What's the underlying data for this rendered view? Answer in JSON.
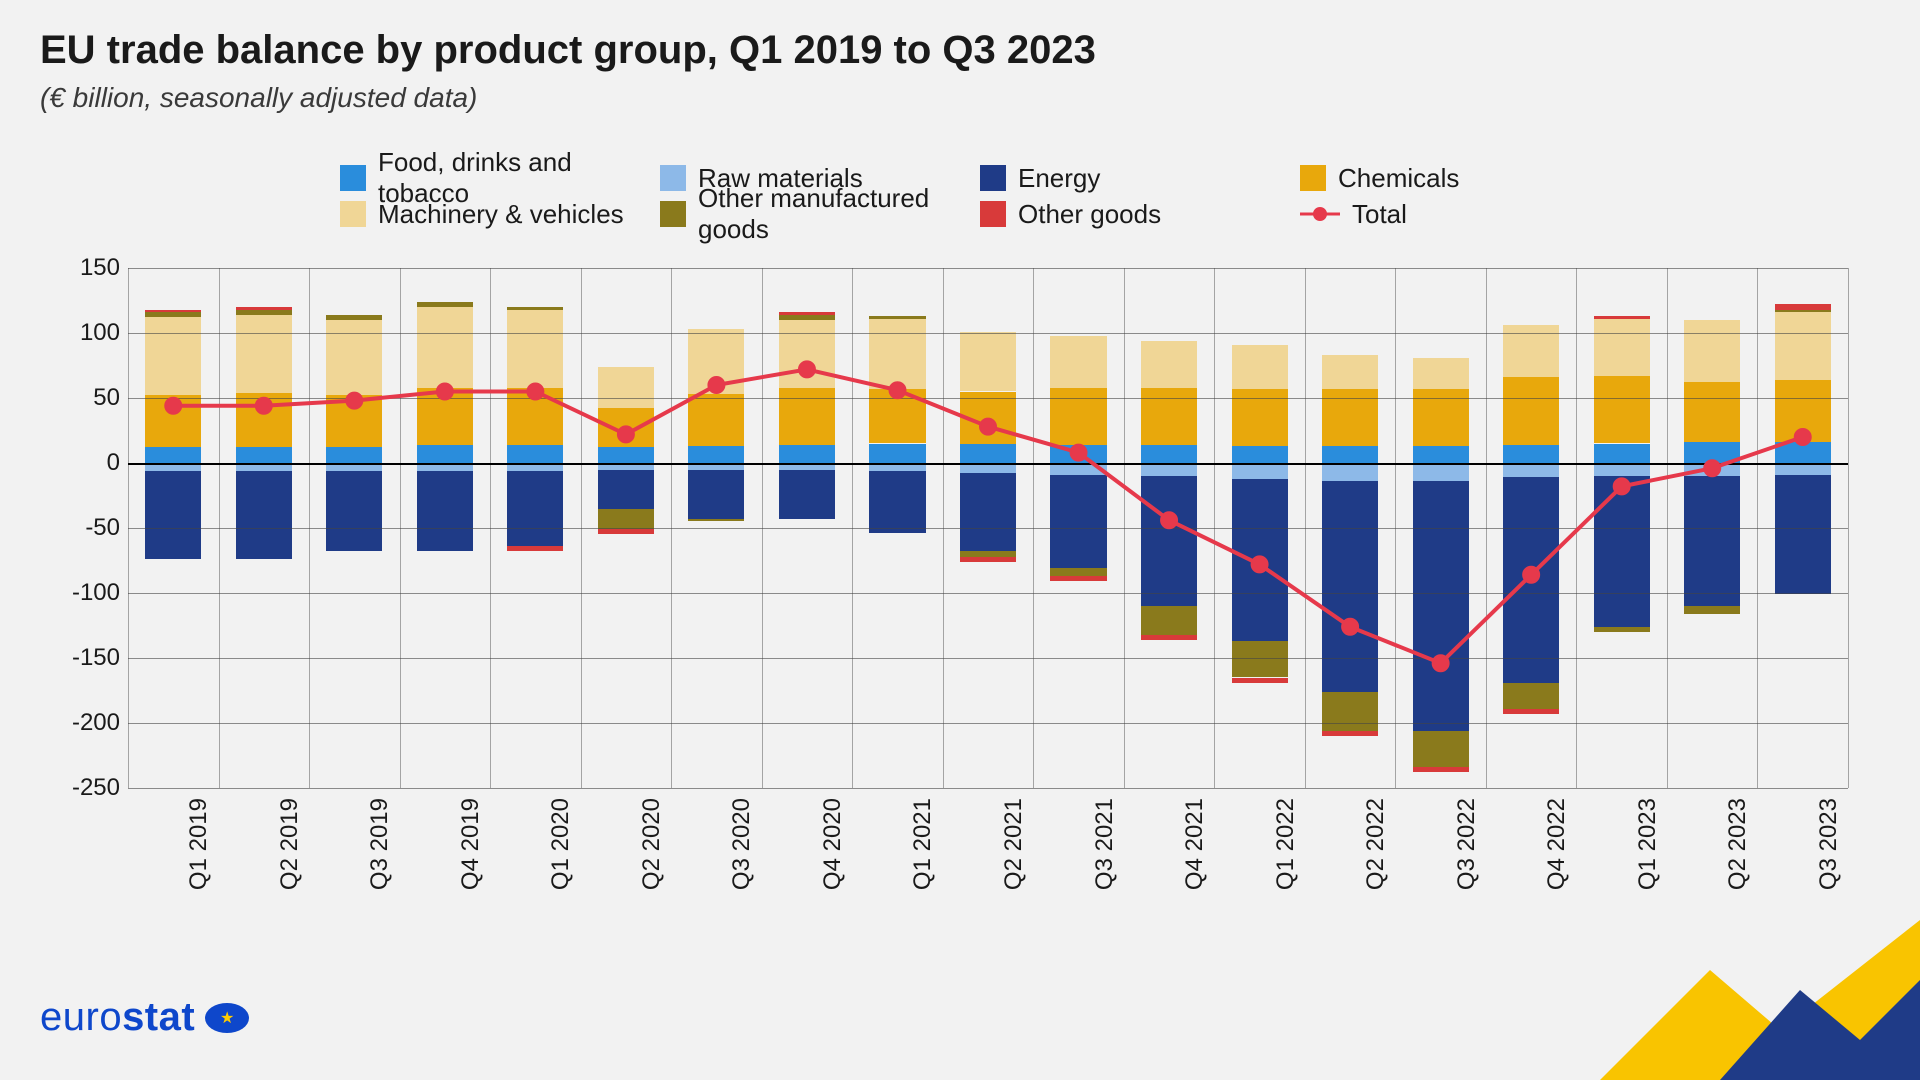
{
  "title": "EU trade balance by product group, Q1 2019 to Q3 2023",
  "subtitle": "(€ billion, seasonally adjusted data)",
  "chart": {
    "type": "stacked-bar-with-line",
    "background_color": "#f2f2f2",
    "grid_color": "#444444",
    "title_fontsize": 40,
    "subtitle_fontsize": 28,
    "axis_fontsize": 24,
    "legend_fontsize": 26,
    "ylim": [
      -250,
      150
    ],
    "ytick_step": 50,
    "yticks": [
      150,
      100,
      50,
      0,
      -50,
      -100,
      -150,
      -200,
      -250
    ],
    "bar_width_ratio": 0.62,
    "categories": [
      "Q1 2019",
      "Q2 2019",
      "Q3 2019",
      "Q4 2019",
      "Q1 2020",
      "Q2 2020",
      "Q3 2020",
      "Q4 2020",
      "Q1 2021",
      "Q2 2021",
      "Q3 2021",
      "Q4 2021",
      "Q1 2022",
      "Q2 2022",
      "Q3 2022",
      "Q4 2022",
      "Q1 2023",
      "Q2 2023",
      "Q3 2023"
    ],
    "series": [
      {
        "key": "food",
        "label": "Food, drinks and tobacco",
        "color": "#2a8ddc",
        "sign": "pos"
      },
      {
        "key": "raw",
        "label": "Raw materials",
        "color": "#8db9e8",
        "sign": "neg"
      },
      {
        "key": "energy",
        "label": "Energy",
        "color": "#1f3b87",
        "sign": "neg"
      },
      {
        "key": "chem",
        "label": "Chemicals",
        "color": "#e8a80c",
        "sign": "pos"
      },
      {
        "key": "mach",
        "label": "Machinery & vehicles",
        "color": "#f0d696",
        "sign": "pos"
      },
      {
        "key": "other_m",
        "label": "Other manufactured goods",
        "color": "#8a7a1c",
        "sign": "mixed"
      },
      {
        "key": "other_g",
        "label": "Other goods",
        "color": "#d83a3a",
        "sign": "mixed"
      }
    ],
    "pos_stack_order": [
      "food",
      "chem",
      "mach",
      "other_m",
      "other_g"
    ],
    "neg_stack_order": [
      "raw",
      "energy",
      "other_m",
      "other_g"
    ],
    "values": {
      "food": [
        12,
        12,
        12,
        14,
        14,
        12,
        13,
        14,
        15,
        15,
        14,
        14,
        13,
        13,
        13,
        14,
        15,
        16,
        16
      ],
      "raw": [
        -6,
        -6,
        -6,
        -6,
        -6,
        -5,
        -5,
        -5,
        -6,
        -8,
        -9,
        -10,
        -12,
        -14,
        -14,
        -11,
        -10,
        -10,
        -9
      ],
      "energy": [
        -68,
        -68,
        -62,
        -62,
        -58,
        -30,
        -38,
        -38,
        -48,
        -60,
        -72,
        -100,
        -125,
        -162,
        -192,
        -158,
        -116,
        -100,
        -92
      ],
      "chem": [
        40,
        42,
        40,
        44,
        44,
        30,
        40,
        44,
        42,
        40,
        44,
        44,
        44,
        44,
        44,
        52,
        52,
        46,
        48
      ],
      "mach": [
        60,
        60,
        58,
        62,
        60,
        32,
        50,
        52,
        54,
        46,
        40,
        36,
        34,
        26,
        24,
        40,
        44,
        48,
        52
      ],
      "other_m": [
        4,
        4,
        4,
        4,
        2,
        -16,
        -2,
        4,
        2,
        -4,
        -6,
        -22,
        -28,
        -30,
        -28,
        -20,
        -4,
        -6,
        2
      ],
      "other_g": [
        2,
        2,
        0,
        0,
        -4,
        -4,
        0,
        2,
        0,
        -4,
        -4,
        -4,
        -4,
        -4,
        -4,
        -4,
        2,
        0,
        4
      ]
    },
    "total_line": {
      "label": "Total",
      "color": "#e6394b",
      "line_width": 4,
      "marker_size": 16,
      "values": [
        44,
        44,
        48,
        55,
        55,
        22,
        60,
        72,
        56,
        28,
        8,
        -44,
        -78,
        -126,
        -154,
        -86,
        -18,
        -4,
        20
      ]
    }
  },
  "legend_items": [
    {
      "type": "swatch",
      "color": "#2a8ddc",
      "label": "Food, drinks and tobacco"
    },
    {
      "type": "swatch",
      "color": "#8db9e8",
      "label": "Raw materials"
    },
    {
      "type": "swatch",
      "color": "#1f3b87",
      "label": "Energy"
    },
    {
      "type": "swatch",
      "color": "#e8a80c",
      "label": "Chemicals"
    },
    {
      "type": "swatch",
      "color": "#f0d696",
      "label": "Machinery & vehicles"
    },
    {
      "type": "swatch",
      "color": "#8a7a1c",
      "label": "Other manufactured goods"
    },
    {
      "type": "swatch",
      "color": "#d83a3a",
      "label": "Other goods"
    },
    {
      "type": "line",
      "color": "#e6394b",
      "label": "Total"
    }
  ],
  "footer": {
    "brand_prefix": "euro",
    "brand_suffix": "stat",
    "brand_prefix_color": "#0e47cb",
    "brand_suffix_color": "#0e47cb",
    "deco_yellow": "#f9c400",
    "deco_blue": "#1f3b87"
  }
}
